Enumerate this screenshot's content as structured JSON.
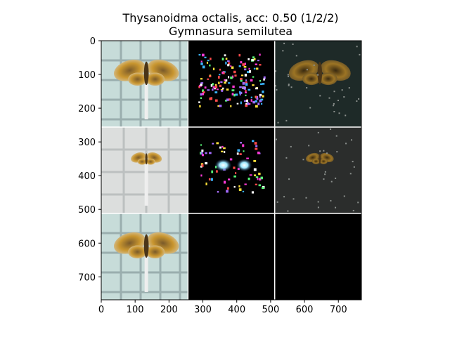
{
  "chart_data": {
    "type": "image-grid",
    "title": "Thysanoidma octalis, acc: 0.50 (1/2/2)",
    "subtitle": "Gymnasura semilutea",
    "xlabel": "",
    "ylabel": "",
    "xlim": [
      0,
      768
    ],
    "ylim": [
      768,
      0
    ],
    "xticks": [
      0,
      100,
      200,
      300,
      400,
      500,
      600,
      700
    ],
    "yticks": [
      0,
      100,
      200,
      300,
      400,
      500,
      600,
      700
    ],
    "grid": false,
    "rows": 3,
    "cols": 3,
    "tile_size": 256,
    "tiles": [
      {
        "row": 0,
        "col": 0,
        "content": "moth photo, light teal background with grid",
        "moth": "large"
      },
      {
        "row": 0,
        "col": 1,
        "content": "saliency map, sparse colored speckles on black",
        "moth": "none"
      },
      {
        "row": 0,
        "col": 2,
        "content": "masked photo, dark background with golden moth",
        "moth": "large-dim"
      },
      {
        "row": 1,
        "col": 0,
        "content": "moth photo, light grey background with grid",
        "moth": "small"
      },
      {
        "row": 1,
        "col": 1,
        "content": "saliency map, bright cyan/white blobs on black",
        "moth": "none"
      },
      {
        "row": 1,
        "col": 2,
        "content": "masked photo, dark grey background with small moth",
        "moth": "small-dim"
      },
      {
        "row": 2,
        "col": 0,
        "content": "moth photo, light teal background",
        "moth": "large"
      },
      {
        "row": 2,
        "col": 1,
        "content": "empty",
        "moth": "none"
      },
      {
        "row": 2,
        "col": 2,
        "content": "empty",
        "moth": "none"
      }
    ]
  }
}
